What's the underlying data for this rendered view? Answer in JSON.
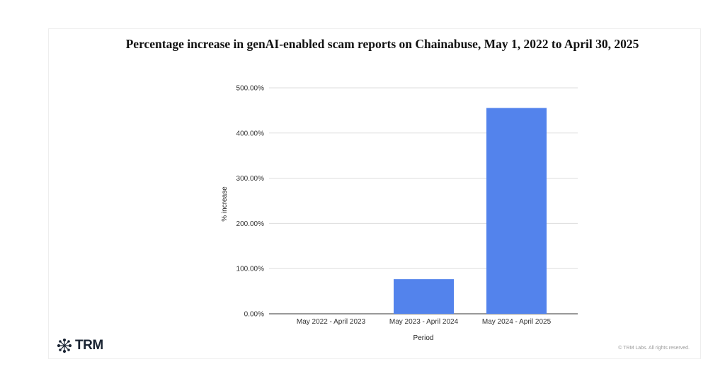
{
  "chart_data": {
    "type": "bar",
    "title": "Percentage increase in genAI-enabled scam reports on Chainabuse, May 1, 2022 to April 30, 2025",
    "xlabel": "Period",
    "ylabel": "% increase",
    "categories": [
      "May 2022 - April 2023",
      "May 2023 - April 2024",
      "May 2024 - April 2025"
    ],
    "values": [
      0,
      76.6,
      455.5
    ],
    "yticks": [
      "0.00%",
      "100.00%",
      "200.00%",
      "300.00%",
      "400.00%",
      "500.00%"
    ],
    "ylim": [
      0,
      500
    ],
    "grid": true,
    "bar_color": "#5383ec"
  },
  "branding": {
    "logo": "TRM",
    "copyright": "© TRM Labs. All rights reserved."
  }
}
